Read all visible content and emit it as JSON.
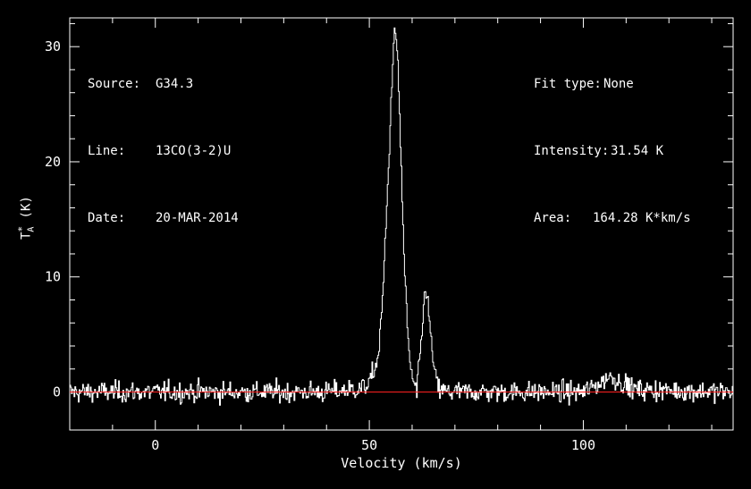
{
  "header": {
    "source_label": "Source:",
    "source_value": "G34.3",
    "line_label": "Line:",
    "line_value": "13CO(3-2)U",
    "date_label": "Date:",
    "date_value": "20-MAR-2014",
    "fit_label": "Fit type:",
    "fit_value": "None",
    "intensity_label": "Intensity:",
    "intensity_value": "31.54 K",
    "area_label": "Area:",
    "area_value": "164.28 K*km/s"
  },
  "chart_data": {
    "type": "line",
    "xlabel": "Velocity (km/s)",
    "ylabel": "T_A^* (K)",
    "xlim": [
      -20,
      135
    ],
    "ylim": [
      -3.3,
      32.5
    ],
    "x_ticks": [
      0,
      50,
      100
    ],
    "y_ticks": [
      0,
      10,
      20,
      30
    ],
    "grid": false,
    "legend": "none",
    "series": [
      {
        "color": "#ffffff",
        "x": [
          -20,
          0,
          20,
          40,
          48,
          50,
          52,
          53,
          54,
          55,
          55.5,
          56,
          56.5,
          57,
          58,
          59,
          60,
          61,
          62,
          63,
          64,
          65,
          66,
          68,
          80,
          100,
          104,
          106,
          108,
          112,
          135
        ],
        "y": [
          0,
          0,
          0,
          0,
          0.3,
          0.8,
          3,
          8,
          16,
          25,
          30,
          31.5,
          29,
          24,
          12,
          4,
          1,
          0,
          4,
          9.5,
          6,
          2,
          0.3,
          0,
          0,
          0,
          0.8,
          1.4,
          1,
          0.2,
          0
        ],
        "noise_rms": 0.7
      },
      {
        "color": "#ff2020",
        "x": [
          -20,
          135
        ],
        "y": [
          0,
          0
        ]
      }
    ]
  }
}
